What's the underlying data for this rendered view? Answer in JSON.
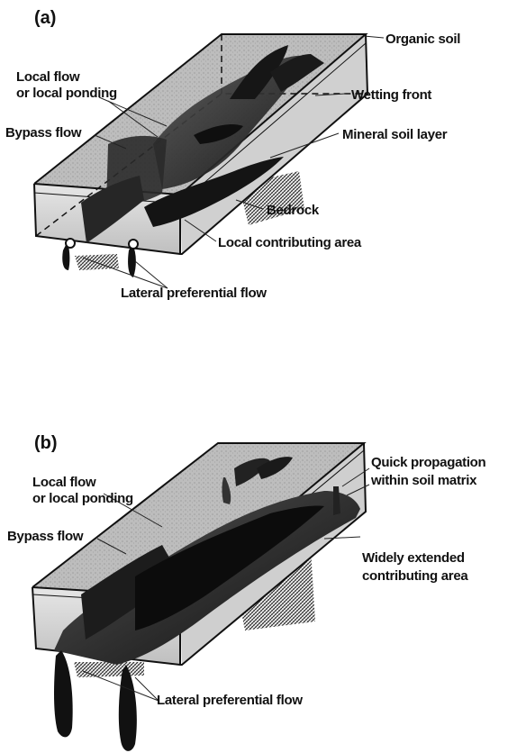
{
  "panels": [
    {
      "id": "a",
      "label": "(a)",
      "annotations": {
        "organic_soil": "Organic soil",
        "local_flow_line1": "Local flow",
        "local_flow_line2": "or local ponding",
        "wetting_front": "Wetting front",
        "bypass_flow": "Bypass flow",
        "mineral_soil": "Mineral soil layer",
        "bedrock": "Bedrock",
        "local_contributing": "Local contributing area",
        "lateral_flow": "Lateral preferential flow"
      }
    },
    {
      "id": "b",
      "label": "(b)",
      "annotations": {
        "local_flow_line1": "Local flow",
        "local_flow_line2": "or local ponding",
        "quick_line1": "Quick propagation",
        "quick_line2": "within soil matrix",
        "bypass_flow": "Bypass flow",
        "widely_line1": "Widely extended",
        "widely_line2": "contributing area",
        "lateral_flow": "Lateral preferential flow"
      }
    }
  ],
  "colors": {
    "soil_top": "#b9b9b9",
    "soil_side": "#d4d4d4",
    "soil_front": "#c6c6c6",
    "dark_flow": "#111111"
  }
}
